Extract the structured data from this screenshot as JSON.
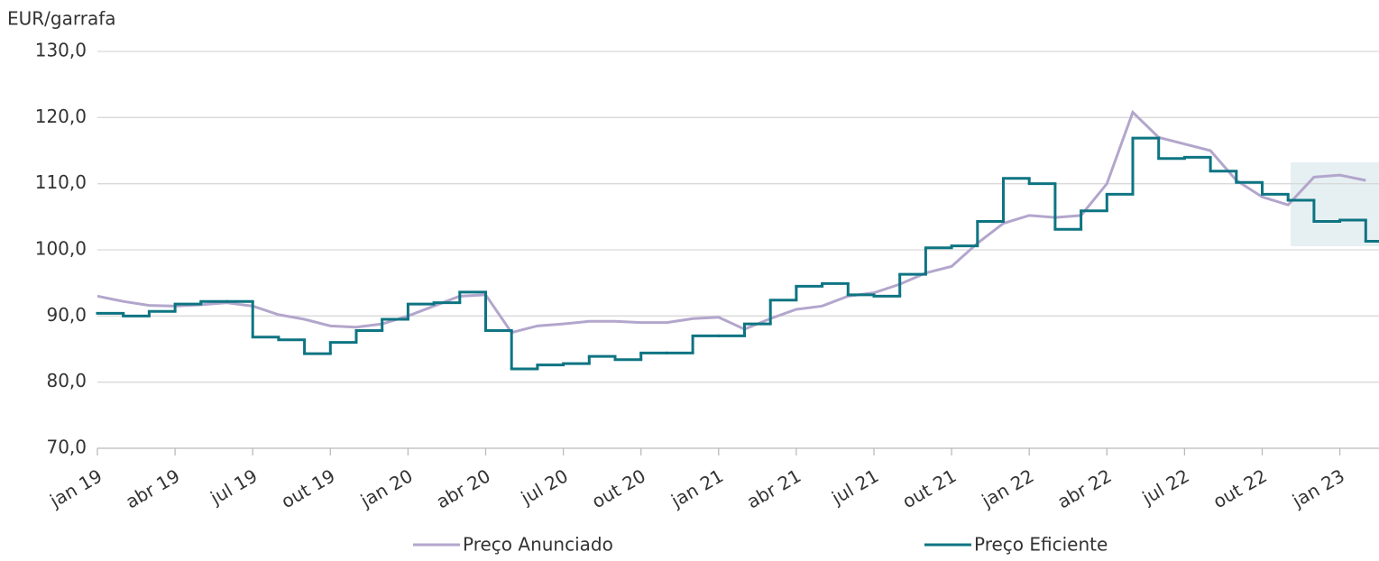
{
  "chart_data": {
    "type": "line",
    "y_label": "EUR/garrafa",
    "categories": [
      "jan 19",
      null,
      null,
      "abr 19",
      null,
      null,
      "jul 19",
      null,
      null,
      "out 19",
      null,
      null,
      "jan 20",
      null,
      null,
      "abr 20",
      null,
      null,
      "jul 20",
      null,
      null,
      "out 20",
      null,
      null,
      "jan 21",
      null,
      null,
      "abr 21",
      null,
      null,
      "jul 21",
      null,
      null,
      "out 21",
      null,
      null,
      "jan 22",
      null,
      null,
      "abr 22",
      null,
      null,
      "jul 22",
      null,
      null,
      "out 22",
      null,
      null,
      "jan 23",
      null
    ],
    "series": [
      {
        "name": "Preço Anunciado",
        "color": "#b3a6cc",
        "style": "line",
        "values": [
          93.0,
          92.2,
          91.6,
          91.5,
          91.7,
          92.0,
          91.5,
          90.2,
          89.5,
          88.5,
          88.3,
          88.8,
          90.0,
          91.5,
          93.0,
          93.2,
          87.5,
          88.5,
          88.8,
          89.2,
          89.2,
          89.0,
          89.0,
          89.6,
          89.8,
          88.0,
          89.6,
          91.0,
          91.5,
          93.0,
          93.5,
          94.8,
          96.5,
          97.5,
          101.0,
          104.0,
          105.2,
          104.9,
          105.2,
          110.0,
          120.8,
          117.0,
          116.0,
          115.0,
          110.5,
          108.0,
          106.8,
          111.0,
          111.3,
          110.5
        ]
      },
      {
        "name": "Preço Eficiente",
        "color": "#0e7482",
        "style": "step",
        "values": [
          90.4,
          90.0,
          90.7,
          91.8,
          92.2,
          92.2,
          86.8,
          86.4,
          84.3,
          86.0,
          87.8,
          89.5,
          91.8,
          92.0,
          93.6,
          87.8,
          82.0,
          82.6,
          82.8,
          83.9,
          83.4,
          84.4,
          84.4,
          87.0,
          87.0,
          88.8,
          92.4,
          94.5,
          94.9,
          93.2,
          93.0,
          96.3,
          100.3,
          100.6,
          104.3,
          110.8,
          110.0,
          103.1,
          105.9,
          108.4,
          116.9,
          113.8,
          114.0,
          111.9,
          110.2,
          108.4,
          107.5,
          104.3,
          104.5,
          101.3
        ]
      }
    ],
    "ylim": [
      70,
      130
    ],
    "yticks": [
      {
        "value": 70,
        "label": "70,0"
      },
      {
        "value": 80,
        "label": "80,0"
      },
      {
        "value": 90,
        "label": "90,0"
      },
      {
        "value": 100,
        "label": "100,0"
      },
      {
        "value": 110,
        "label": "110,0"
      },
      {
        "value": 120,
        "label": "120,0"
      },
      {
        "value": 130,
        "label": "130,0"
      }
    ],
    "grid": true,
    "legend": "bottom"
  }
}
